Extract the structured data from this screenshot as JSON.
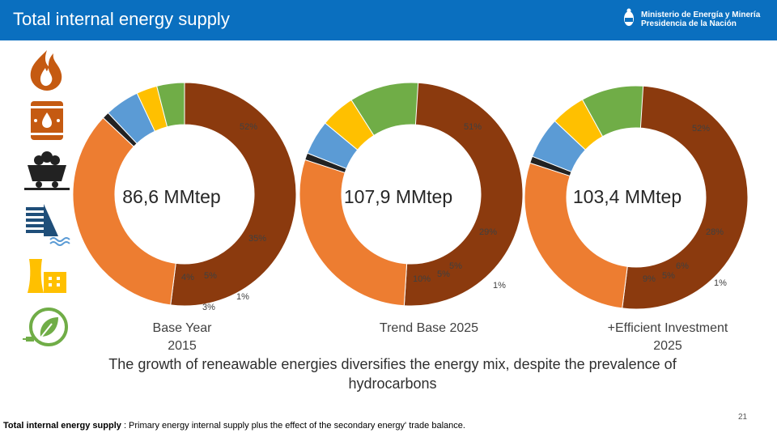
{
  "header": {
    "title": "Total internal energy supply",
    "ministry_line1": "Ministerio de Energía y Minería",
    "ministry_line2": "Presidencia de la Nación"
  },
  "icons": [
    "gas-flame-icon",
    "oil-barrel-icon",
    "coal-cart-icon",
    "hydro-dam-icon",
    "nuclear-plant-icon",
    "renewable-leaf-icon"
  ],
  "colors": {
    "gas": "#8b3a0e",
    "oil": "#ed7d31",
    "coal": "#222222",
    "hydro": "#5b9bd5",
    "nuclear": "#ffc000",
    "renewable": "#70ad47",
    "header": "#0a6fbf"
  },
  "chart_data": [
    {
      "type": "pie",
      "name": "Base Year 2015",
      "title_line1": "Base Year",
      "title_line2": "2015",
      "total_label": "86,6 MMtep",
      "categories": [
        "Gas",
        "Oil",
        "Coal",
        "Hydro",
        "Nuclear",
        "Renewables"
      ],
      "values": [
        52,
        35,
        1,
        5,
        3,
        4
      ],
      "value_labels": [
        "52%",
        "35%",
        "1%",
        "5%",
        "3%",
        "4%"
      ]
    },
    {
      "type": "pie",
      "name": "Trend Base 2025",
      "title_line1": "Trend Base 2025",
      "title_line2": "",
      "total_label": "107,9 MMtep",
      "categories": [
        "Gas",
        "Oil",
        "Coal",
        "Hydro",
        "Nuclear",
        "Renewables"
      ],
      "values": [
        51,
        29,
        1,
        5,
        5,
        10
      ],
      "value_labels": [
        "51%",
        "29%",
        "1%",
        "5%",
        "5%",
        "10%"
      ]
    },
    {
      "type": "pie",
      "name": "+Efficient Investment 2025",
      "title_line1": "+Efficient Investment",
      "title_line2": "2025",
      "total_label": "103,4 MMtep",
      "categories": [
        "Gas",
        "Oil",
        "Coal",
        "Hydro",
        "Nuclear",
        "Renewables"
      ],
      "values": [
        52,
        28,
        1,
        6,
        5,
        9
      ],
      "value_labels": [
        "52%",
        "28%",
        "1%",
        "6%",
        "5%",
        "9%"
      ]
    }
  ],
  "headline": "The growth of reneawable energies diversifies the energy mix, despite the prevalence of hydrocarbons",
  "footnote_bold": "Total internal energy supply",
  "footnote_rest": " : Primary energy internal supply plus the effect of the secondary energy' trade balance.",
  "page_number": "21"
}
